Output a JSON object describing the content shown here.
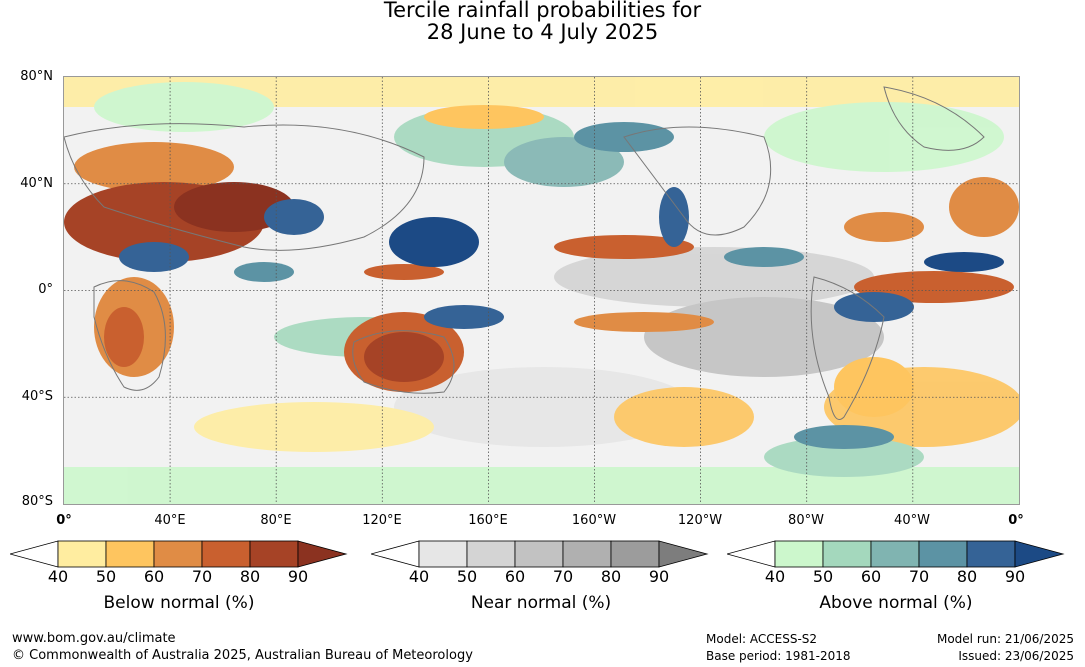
{
  "title": {
    "line1": "Tercile rainfall probabilities for",
    "line2": "28 June to 4 July 2025"
  },
  "map": {
    "lat_labels": [
      "80°N",
      "40°N",
      "0°",
      "40°S",
      "80°S"
    ],
    "lon_labels": [
      "0°",
      "40°E",
      "80°E",
      "120°E",
      "160°E",
      "160°W",
      "120°W",
      "80°W",
      "40°W",
      "0°"
    ]
  },
  "colorbars": [
    {
      "name": "below",
      "title": "Below normal (%)",
      "ticks": [
        "40",
        "50",
        "60",
        "70",
        "80",
        "90"
      ],
      "colors": [
        "#ffffff",
        "#ffeda0",
        "#fec55f",
        "#e08c45",
        "#c9602f",
        "#a64326",
        "#8b3220"
      ]
    },
    {
      "name": "near",
      "title": "Near normal (%)",
      "ticks": [
        "40",
        "50",
        "60",
        "70",
        "80",
        "90"
      ],
      "colors": [
        "#ffffff",
        "#e6e6e6",
        "#d4d4d4",
        "#c2c2c2",
        "#b0b0b0",
        "#9c9c9c",
        "#7d7d7d"
      ]
    },
    {
      "name": "above",
      "title": "Above normal (%)",
      "ticks": [
        "40",
        "50",
        "60",
        "70",
        "80",
        "90"
      ],
      "colors": [
        "#ffffff",
        "#ccf7cc",
        "#a4d8bd",
        "#80b4b1",
        "#5c93a4",
        "#356396",
        "#1c4a85"
      ]
    }
  ],
  "footer": {
    "website": "www.bom.gov.au/climate",
    "copyright": "© Commonwealth of Australia 2025, Australian Bureau of Meteorology",
    "model": "Model: ACCESS-S2",
    "base_period": "Base period: 1981-2018",
    "model_run": "Model run: 21/06/2025",
    "issued": "Issued: 23/06/2025"
  }
}
